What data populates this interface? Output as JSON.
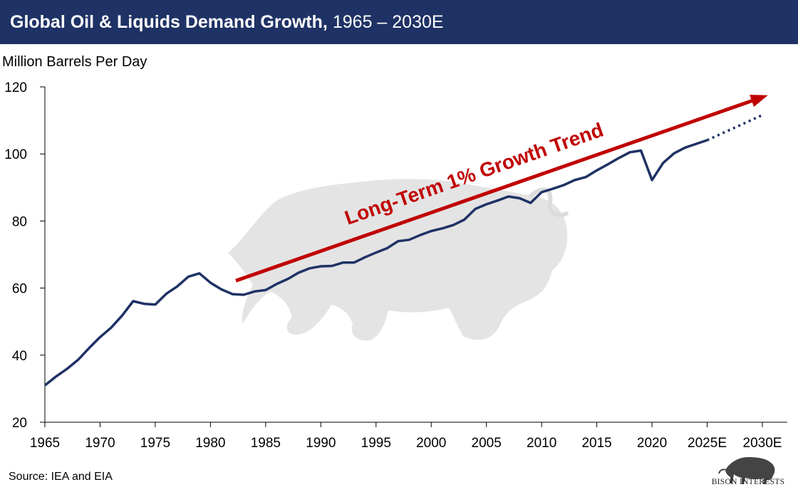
{
  "header": {
    "title_bold": "Global Oil & Liquids Demand Growth,",
    "title_rest": "1965 – 2030E"
  },
  "colors": {
    "header_bg": "#1f3265",
    "series": "#1f3265",
    "trend": "#c00000",
    "watermark": "#e3e3e3"
  },
  "footer": {
    "source": "Source: IEA and EIA",
    "logo_text": "BISON INTERESTS"
  },
  "chart_data": {
    "type": "line",
    "title": "Global Oil & Liquids Demand Growth, 1965 – 2030E",
    "ylabel": "Million Barrels Per Day",
    "xlabel": "",
    "ylim": [
      20,
      120
    ],
    "xlim": [
      1965,
      2030
    ],
    "yticks": [
      20,
      40,
      60,
      80,
      100,
      120
    ],
    "xticks": [
      {
        "x": 1965,
        "label": "1965"
      },
      {
        "x": 1970,
        "label": "1970"
      },
      {
        "x": 1975,
        "label": "1975"
      },
      {
        "x": 1980,
        "label": "1980"
      },
      {
        "x": 1985,
        "label": "1985"
      },
      {
        "x": 1990,
        "label": "1990"
      },
      {
        "x": 1995,
        "label": "1995"
      },
      {
        "x": 2000,
        "label": "2000"
      },
      {
        "x": 2005,
        "label": "2005"
      },
      {
        "x": 2010,
        "label": "2010"
      },
      {
        "x": 2015,
        "label": "2015"
      },
      {
        "x": 2020,
        "label": "2020"
      },
      {
        "x": 2025,
        "label": "2025E"
      },
      {
        "x": 2030,
        "label": "2030E"
      }
    ],
    "grid": false,
    "series": [
      {
        "style": "solid",
        "x": [
          1965,
          1966,
          1967,
          1968,
          1969,
          1970,
          1971,
          1972,
          1973,
          1974,
          1975,
          1976,
          1977,
          1978,
          1979,
          1980,
          1981,
          1982,
          1983,
          1984,
          1985,
          1986,
          1987,
          1988,
          1989,
          1990,
          1991,
          1992,
          1993,
          1994,
          1995,
          1996,
          1997,
          1998,
          1999,
          2000,
          2001,
          2002,
          2003,
          2004,
          2005,
          2006,
          2007,
          2008,
          2009,
          2010,
          2011,
          2012,
          2013,
          2014,
          2015,
          2016,
          2017,
          2018,
          2019,
          2020,
          2021,
          2022,
          2023,
          2024,
          2025
        ],
        "y": [
          31.0,
          33.6,
          35.9,
          38.6,
          42.1,
          45.4,
          48.2,
          51.8,
          56.1,
          55.3,
          55.1,
          58.3,
          60.5,
          63.4,
          64.4,
          61.6,
          59.6,
          58.2,
          58.0,
          59.0,
          59.4,
          61.2,
          62.7,
          64.6,
          65.9,
          66.5,
          66.6,
          67.6,
          67.6,
          69.2,
          70.6,
          71.9,
          74.0,
          74.4,
          75.8,
          77.0,
          77.8,
          78.8,
          80.4,
          83.6,
          85.0,
          86.1,
          87.3,
          86.8,
          85.4,
          88.6,
          89.6,
          90.7,
          92.2,
          93.1,
          95.1,
          96.9,
          98.8,
          100.5,
          101.0,
          92.2,
          97.3,
          100.2,
          101.9,
          103.0,
          104.1
        ]
      },
      {
        "style": "dotted",
        "x": [
          2025,
          2030
        ],
        "y": [
          104.1,
          111.6
        ]
      }
    ],
    "annotations": [
      {
        "text": "Long-Term 1% Growth Trend",
        "type": "arrow",
        "from": {
          "x": 1982.3,
          "y": 62.2
        },
        "to": {
          "x": 2030.5,
          "y": 117.5
        }
      }
    ]
  }
}
